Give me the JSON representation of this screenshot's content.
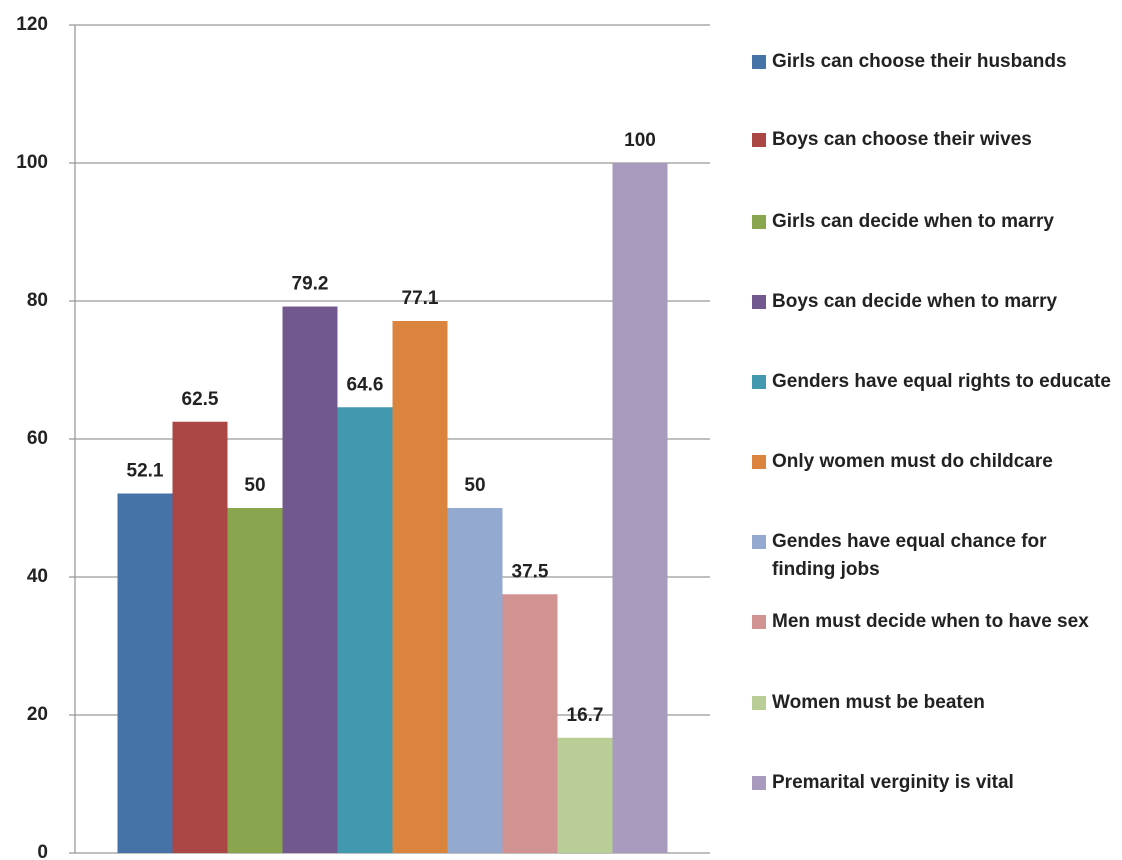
{
  "chart_data": {
    "type": "bar",
    "series": [
      {
        "name": "Girls can choose their husbands",
        "color": "#4572a7",
        "values": [
          52.1
        ]
      },
      {
        "name": "Boys can choose their wives",
        "color": "#aa4643",
        "values": [
          62.5
        ]
      },
      {
        "name": "Girls can decide when to marry",
        "color": "#89a54e",
        "values": [
          50
        ]
      },
      {
        "name": "Boys can decide when to marry",
        "color": "#71588f",
        "values": [
          79.2
        ]
      },
      {
        "name": "Genders have equal rights to educate",
        "color": "#4198af",
        "values": [
          64.6
        ]
      },
      {
        "name": "Only women must do childcare",
        "color": "#db843d",
        "values": [
          77.1
        ]
      },
      {
        "name": "Gendes have equal chance for finding jobs",
        "color": "#93a9cf",
        "values": [
          50
        ]
      },
      {
        "name": "Men must decide when to have sex",
        "color": "#d19392",
        "values": [
          37.5
        ]
      },
      {
        "name": "Women must be beaten",
        "color": "#b9cd96",
        "values": [
          16.7
        ]
      },
      {
        "name": "Premarital verginity is vital",
        "color": "#a99bbd",
        "values": [
          100
        ]
      }
    ],
    "ylim": [
      0,
      120
    ],
    "yticks": [
      0,
      20,
      40,
      60,
      80,
      100,
      120
    ],
    "grid": true,
    "legend": "right"
  }
}
